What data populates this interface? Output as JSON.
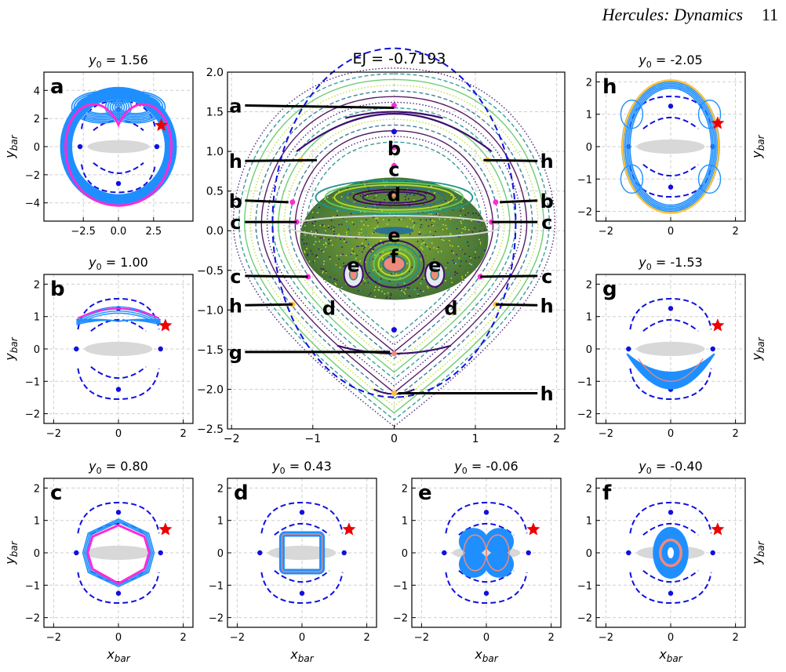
{
  "header": {
    "title": "Hercules: Dynamics",
    "page_number": "11"
  },
  "colors": {
    "orbit_blue": "#1f8fff",
    "orbit_magenta": "#ff2bd6",
    "orbit_salmon": "#f08a7a",
    "orbit_gold": "#ffc23a",
    "zvc_dashed": "#1010e0",
    "bar": "#d8d8d8",
    "star": "#ee0000",
    "section_colors": [
      "#3b0f6f",
      "#21918c",
      "#5ec962",
      "#b5de2b",
      "#2c728e",
      "#440154"
    ]
  },
  "main_panel": {
    "title": "EJ = -0.7193",
    "x_ticks": [
      "−2",
      "−1",
      "0",
      "1",
      "2"
    ],
    "y_ticks": [
      "2.0",
      "1.5",
      "1.0",
      "0.5",
      "0.0",
      "−0.5",
      "−1.0",
      "−1.5",
      "−2.0",
      "−2.5"
    ],
    "xlim": [
      -2.05,
      2.1
    ],
    "ylim": [
      -2.5,
      2.0
    ],
    "labels": [
      {
        "text": "a",
        "x": -1.95,
        "y": 1.58,
        "tx": 0.0,
        "ty": 1.55
      },
      {
        "text": "h",
        "x": -1.95,
        "y": 0.88,
        "tx": -0.95,
        "ty": 0.89
      },
      {
        "text": "h",
        "x": 1.88,
        "y": 0.88,
        "tx": 1.1,
        "ty": 0.89
      },
      {
        "text": "b",
        "x": -1.95,
        "y": 0.38,
        "tx": -1.3,
        "ty": 0.36
      },
      {
        "text": "b",
        "x": 1.88,
        "y": 0.38,
        "tx": 1.3,
        "ty": 0.36
      },
      {
        "text": "c",
        "x": -1.95,
        "y": 0.11,
        "tx": -1.2,
        "ty": 0.11
      },
      {
        "text": "c",
        "x": 1.88,
        "y": 0.11,
        "tx": 1.2,
        "ty": 0.11
      },
      {
        "text": "c",
        "x": -1.95,
        "y": -0.57,
        "tx": -1.06,
        "ty": -0.58
      },
      {
        "text": "c",
        "x": 1.88,
        "y": -0.57,
        "tx": 1.06,
        "ty": -0.58
      },
      {
        "text": "h",
        "x": -1.95,
        "y": -0.94,
        "tx": -1.25,
        "ty": -0.93
      },
      {
        "text": "h",
        "x": 1.88,
        "y": -0.94,
        "tx": 1.25,
        "ty": -0.93
      },
      {
        "text": "g",
        "x": -1.95,
        "y": -1.53,
        "tx": -0.05,
        "ty": -1.53
      },
      {
        "text": "h",
        "x": 1.88,
        "y": -2.05,
        "tx": 0.05,
        "ty": -2.05
      },
      {
        "text": "b",
        "x": 0.0,
        "y": 1.04,
        "tx": null,
        "ty": null
      },
      {
        "text": "c",
        "x": 0.0,
        "y": 0.78,
        "tx": null,
        "ty": null
      },
      {
        "text": "d",
        "x": 0.0,
        "y": 0.46,
        "tx": null,
        "ty": null
      },
      {
        "text": "e",
        "x": 0.0,
        "y": -0.05,
        "tx": null,
        "ty": null
      },
      {
        "text": "f",
        "x": 0.0,
        "y": -0.32,
        "tx": null,
        "ty": null
      },
      {
        "text": "e",
        "x": -0.5,
        "y": -0.43,
        "tx": null,
        "ty": null
      },
      {
        "text": "e",
        "x": 0.5,
        "y": -0.43,
        "tx": null,
        "ty": null
      },
      {
        "text": "d",
        "x": -0.8,
        "y": -0.97,
        "tx": null,
        "ty": null
      },
      {
        "text": "d",
        "x": 0.7,
        "y": -0.97,
        "tx": null,
        "ty": null
      }
    ]
  },
  "panels": [
    {
      "id": "a",
      "label": "a",
      "title": "y0 = 1.56",
      "title_value": "1.56",
      "lim": 5.3,
      "ticks": [
        -2.5,
        0.0,
        2.5
      ],
      "xtick_labels": [
        "−2.5",
        "0.0",
        "2.5"
      ],
      "yticks": [
        4,
        2,
        0,
        -2,
        -4
      ],
      "ytick_labels": [
        "4",
        "2",
        "0",
        "−2",
        "−4"
      ],
      "ylabel": "ybar",
      "xlabel": ""
    },
    {
      "id": "b",
      "label": "b",
      "title": "y0 = 1.00",
      "title_value": "1.00",
      "lim": 2.3,
      "ticks": [
        -2,
        0,
        2
      ],
      "xtick_labels": [
        "−2",
        "0",
        "2"
      ],
      "yticks": [
        2,
        1,
        0,
        -1,
        -2
      ],
      "ytick_labels": [
        "2",
        "1",
        "0",
        "−1",
        "−2"
      ],
      "ylabel": "ybar",
      "xlabel": ""
    },
    {
      "id": "c",
      "label": "c",
      "title": "y0 = 0.80",
      "title_value": "0.80",
      "lim": 2.3,
      "ticks": [
        -2,
        0,
        2
      ],
      "xtick_labels": [
        "−2",
        "0",
        "2"
      ],
      "yticks": [
        2,
        1,
        0,
        -1,
        -2
      ],
      "ytick_labels": [
        "2",
        "1",
        "0",
        "−1",
        "−2"
      ],
      "ylabel": "ybar",
      "xlabel": "xbar"
    },
    {
      "id": "d",
      "label": "d",
      "title": "y0 = 0.43",
      "title_value": "0.43",
      "lim": 2.3,
      "ticks": [
        -2,
        0,
        2
      ],
      "xtick_labels": [
        "−2",
        "0",
        "2"
      ],
      "yticks": [
        2,
        1,
        0,
        -1,
        -2
      ],
      "ytick_labels": [
        "2",
        "1",
        "0",
        "−1",
        "−2"
      ],
      "ylabel": "",
      "xlabel": "xbar"
    },
    {
      "id": "e",
      "label": "e",
      "title": "y0 = -0.06",
      "title_value": "-0.06",
      "lim": 2.3,
      "ticks": [
        -2,
        0,
        2
      ],
      "xtick_labels": [
        "−2",
        "0",
        "2"
      ],
      "yticks": [
        2,
        1,
        0,
        -1,
        -2
      ],
      "ytick_labels": [
        "2",
        "1",
        "0",
        "−1",
        "−2"
      ],
      "ylabel": "",
      "xlabel": "xbar"
    },
    {
      "id": "f",
      "label": "f",
      "title": "y0 = -0.40",
      "title_value": "-0.40",
      "lim": 2.3,
      "ticks": [
        -2,
        0,
        2
      ],
      "xtick_labels": [
        "−2",
        "0",
        "2"
      ],
      "yticks": [
        2,
        1,
        0,
        -1,
        -2
      ],
      "ytick_labels": [
        "2",
        "1",
        "0",
        "−1",
        "−2"
      ],
      "ylabel": "ybar",
      "xlabel": "xbar"
    },
    {
      "id": "g",
      "label": "g",
      "title": "y0 = -1.53",
      "title_value": "-1.53",
      "lim": 2.3,
      "ticks": [
        -2,
        0,
        2
      ],
      "xtick_labels": [
        "−2",
        "0",
        "2"
      ],
      "yticks": [
        2,
        1,
        0,
        -1,
        -2
      ],
      "ytick_labels": [
        "2",
        "1",
        "0",
        "−1",
        "−2"
      ],
      "ylabel": "ybar",
      "xlabel": ""
    },
    {
      "id": "h",
      "label": "h",
      "title": "y0 = -2.05",
      "title_value": "-2.05",
      "lim": 2.3,
      "ticks": [
        -2,
        0,
        2
      ],
      "xtick_labels": [
        "−2",
        "0",
        "2"
      ],
      "yticks": [
        2,
        1,
        0,
        -1,
        -2
      ],
      "ytick_labels": [
        "2",
        "1",
        "0",
        "−1",
        "−2"
      ],
      "ylabel": "ybar",
      "xlabel": ""
    }
  ]
}
